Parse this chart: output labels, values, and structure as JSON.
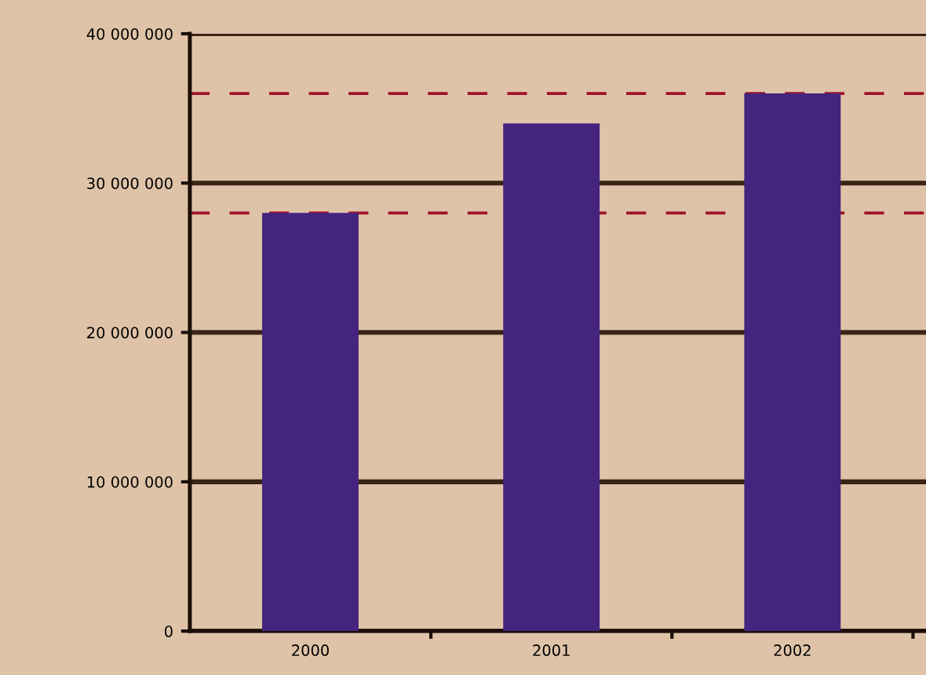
{
  "chart_data": {
    "type": "bar",
    "categories": [
      "2000",
      "2001",
      "2002"
    ],
    "values": [
      28000000,
      34000000,
      36000000
    ],
    "color": "#44247f",
    "ylim": [
      0,
      40000000
    ],
    "yticks": [
      {
        "value": 0,
        "label": "0"
      },
      {
        "value": 10000000,
        "label": "10 000 000"
      },
      {
        "value": 20000000,
        "label": "20 000 000"
      },
      {
        "value": 30000000,
        "label": "30 000 000"
      },
      {
        "value": 40000000,
        "label": "40 000 000"
      }
    ],
    "grid": "y",
    "ref_lines": [
      {
        "axis": "y",
        "value": 28000000,
        "color": "#a0122a",
        "line_style": "dashed"
      },
      {
        "axis": "y",
        "value": 36000000,
        "color": "#a0122a",
        "line_style": "dashed"
      }
    ]
  }
}
